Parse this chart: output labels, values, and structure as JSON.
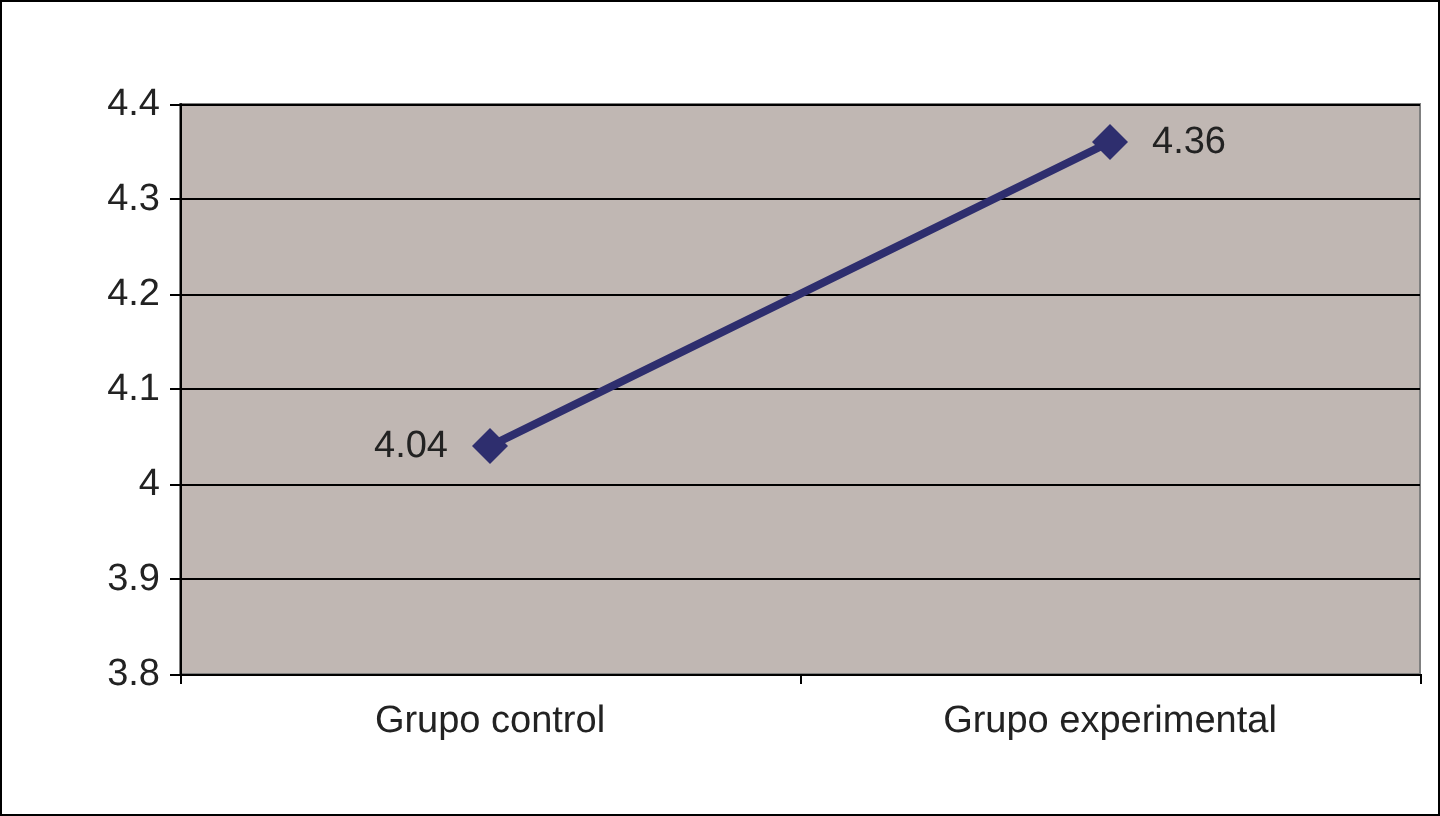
{
  "chart_data": {
    "type": "line",
    "categories": [
      "Grupo control",
      "Grupo experimental"
    ],
    "series": [
      {
        "color": "#2e2e6e",
        "values": [
          4.04,
          4.36
        ]
      }
    ],
    "ylim": [
      3.8,
      4.4
    ],
    "yticks": [
      3.8,
      3.9,
      4,
      4.1,
      4.2,
      4.3,
      4.4
    ],
    "grid": "y",
    "marker": "diamond",
    "line_style": "solid",
    "data_labels": true
  }
}
